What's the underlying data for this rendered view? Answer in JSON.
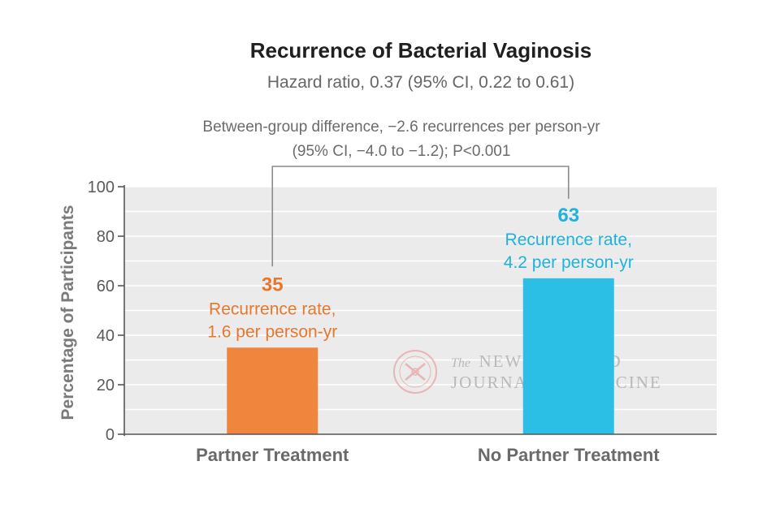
{
  "chart_data": {
    "type": "bar",
    "title": "Recurrence of Bacterial Vaginosis",
    "subtitle": "Hazard ratio, 0.37 (95% CI, 0.22 to 0.61)",
    "ylabel": "Percentage of Participants",
    "ylim": [
      0,
      100
    ],
    "yticks": [
      "0",
      "20",
      "40",
      "60",
      "80",
      "100"
    ],
    "grid": true,
    "categories": [
      "Partner Treatment",
      "No Partner Treatment"
    ],
    "values": [
      35,
      63
    ],
    "colors": [
      "#f0853e",
      "#2cbfe6"
    ],
    "value_labels": [
      "35",
      "63"
    ],
    "rate_labels": [
      [
        "Recurrence rate,",
        "1.6 per person-yr"
      ],
      [
        "Recurrence rate,",
        "4.2 per person-yr"
      ]
    ],
    "comparison": {
      "line1": "Between-group difference, −2.6 recurrences per person-yr",
      "line2": "(95% CI, −4.0 to −1.2); P<0.001"
    }
  },
  "watermark": {
    "line1_prefix": "The",
    "line1_main": "NEW ENGLAND",
    "line2_a": "JOURNAL",
    "line2_of": "of",
    "line2_b": "MEDICINE"
  }
}
